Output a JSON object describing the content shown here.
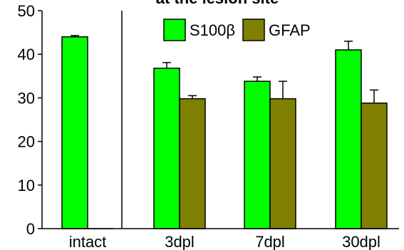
{
  "chart_data": {
    "type": "bar",
    "title": "at the lesion site",
    "xlabel": "",
    "ylabel": "",
    "categories": [
      "intact",
      "3dpl",
      "7dpl",
      "30dpl"
    ],
    "ylim": [
      0,
      50
    ],
    "yticks": [
      0,
      10,
      20,
      30,
      40,
      50
    ],
    "grid": false,
    "legend_position": "top",
    "series": [
      {
        "name": "S100β",
        "color": "#00ff00",
        "values": [
          44,
          36.8,
          33.8,
          41
        ],
        "errors": [
          0.3,
          1.3,
          1.0,
          2.0
        ]
      },
      {
        "name": "GFAP",
        "color": "#808000",
        "values": [
          0,
          29.8,
          29.8,
          28.8
        ],
        "errors": [
          0,
          0.7,
          4.0,
          3.0
        ]
      }
    ]
  }
}
